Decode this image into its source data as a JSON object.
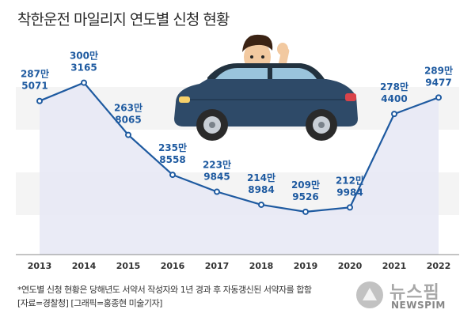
{
  "title": "착한운전 마일리지 연도별 신청 현황",
  "chart_data": {
    "type": "line",
    "title": "착한운전 마일리지 연도별 신청 현황",
    "x": [
      "2013",
      "2014",
      "2015",
      "2016",
      "2017",
      "2018",
      "2019",
      "2020",
      "2021",
      "2022"
    ],
    "values": [
      2875071,
      3003165,
      2638065,
      2358558,
      2239845,
      2148984,
      2099526,
      2129984,
      2784400,
      2899477
    ],
    "labels": [
      [
        "287만",
        "5071"
      ],
      [
        "300만",
        "3165"
      ],
      [
        "263만",
        "8065"
      ],
      [
        "235만",
        "8558"
      ],
      [
        "223만",
        "9845"
      ],
      [
        "214만",
        "8984"
      ],
      [
        "209만",
        "9526"
      ],
      [
        "212만",
        "9984"
      ],
      [
        "278만",
        "4400"
      ],
      [
        "289만",
        "9477"
      ]
    ],
    "ylim": [
      1800000,
      3250000
    ],
    "line_color": "#1e5aa0",
    "grid_band_colors": [
      "#f4f4f4",
      "#ffffff"
    ],
    "area_fill": "#e6e8f5"
  },
  "notes": {
    "line1": "*연도별 신청 현황은 당해년도 서약서 작성자와 1년 경과 후 자동갱신된 서약자를 합함",
    "line2": "[자료=경찰청] [그래픽=홍종현 미술기자]"
  },
  "logo": {
    "text": "뉴스핌",
    "sub": "NEWSPIM"
  },
  "icons": [
    "car-illustration",
    "driver-waving-illustration",
    "newspim-logo-icon"
  ]
}
